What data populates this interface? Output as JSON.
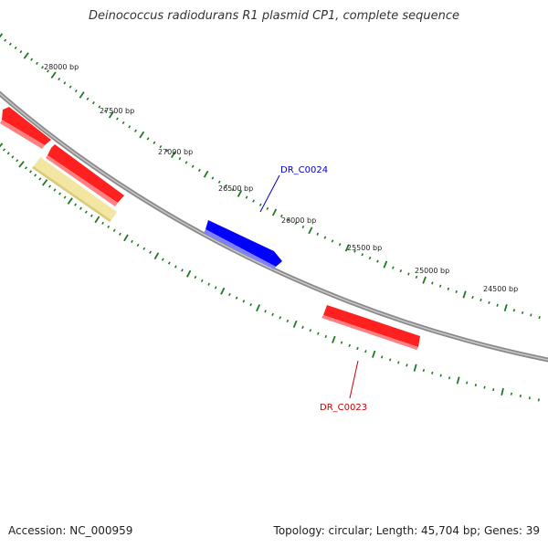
{
  "title": "Deinococcus radiodurans R1 plasmid CP1, complete sequence",
  "footer": {
    "accession": "Accession: NC_000959",
    "summary": "Topology: circular; Length: 45,704 bp; Genes: 39"
  },
  "scale_labels": [
    "28000 bp",
    "27500 bp",
    "27000 bp",
    "26500 bp",
    "26000 bp",
    "25500 bp",
    "25000 bp",
    "24500 bp"
  ],
  "gene_labels": [
    {
      "text": "DR_C0024",
      "color": "#0000cc"
    },
    {
      "text": "DR_C0023",
      "color": "#cc0000"
    }
  ],
  "colors": {
    "backbone": "#8a8a8a",
    "ticks": "#1f7a1f",
    "gene_forward": "#0000ff",
    "gene_reverse": "#ff0000",
    "pseudogene": "#f2e6a0"
  }
}
